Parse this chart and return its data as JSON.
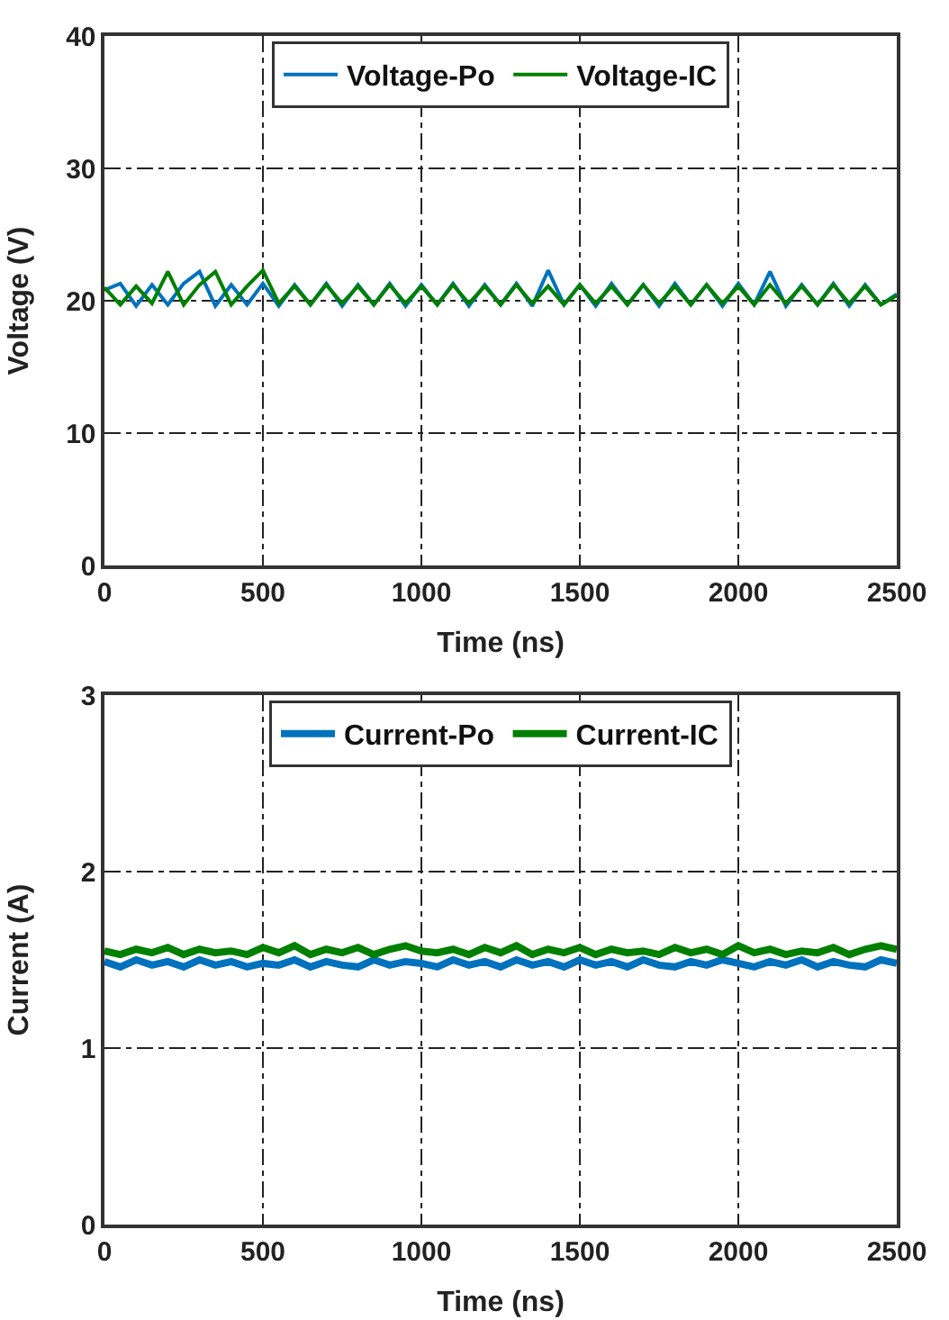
{
  "chart_data": [
    {
      "type": "line",
      "xlabel": "Time (ns)",
      "ylabel": "Voltage (V)",
      "xlim": [
        0,
        2500
      ],
      "xticks": [
        0,
        500,
        1000,
        1500,
        2000,
        2500
      ],
      "ylim": [
        0,
        40
      ],
      "yticks": [
        0,
        10,
        20,
        30,
        40
      ],
      "grid": true,
      "legend": "top",
      "line_style": "solid",
      "x": [
        0,
        50,
        100,
        150,
        200,
        250,
        300,
        350,
        400,
        450,
        500,
        550,
        600,
        650,
        700,
        750,
        800,
        850,
        900,
        950,
        1000,
        1050,
        1100,
        1150,
        1200,
        1250,
        1300,
        1350,
        1400,
        1450,
        1500,
        1550,
        1600,
        1650,
        1700,
        1750,
        1800,
        1850,
        1900,
        1950,
        2000,
        2050,
        2100,
        2150,
        2200,
        2250,
        2300,
        2350,
        2400,
        2450,
        2500
      ],
      "series": [
        {
          "name": "Voltage-Po",
          "color": "#0072bd",
          "values": [
            20.8,
            21.3,
            19.6,
            21.2,
            19.7,
            21.3,
            22.2,
            19.6,
            21.2,
            19.7,
            21.3,
            19.6,
            21.2,
            19.7,
            21.3,
            19.6,
            21.2,
            19.7,
            21.3,
            19.6,
            21.2,
            19.7,
            21.3,
            19.6,
            21.2,
            19.7,
            21.3,
            19.6,
            22.3,
            19.7,
            21.2,
            19.6,
            21.3,
            19.7,
            21.2,
            19.6,
            21.3,
            19.7,
            21.2,
            19.6,
            21.3,
            19.7,
            22.2,
            19.6,
            21.2,
            19.7,
            21.3,
            19.6,
            21.2,
            19.7,
            20.5
          ]
        },
        {
          "name": "Voltage-IC",
          "color": "#008000",
          "values": [
            21.0,
            19.7,
            21.1,
            19.8,
            22.2,
            19.7,
            21.2,
            22.2,
            19.7,
            21.1,
            22.3,
            19.8,
            21.1,
            19.7,
            21.2,
            19.8,
            21.1,
            19.7,
            21.2,
            19.8,
            21.1,
            19.7,
            21.2,
            19.8,
            21.1,
            19.7,
            21.2,
            19.8,
            21.1,
            19.7,
            21.2,
            19.8,
            21.1,
            19.7,
            21.2,
            19.8,
            21.1,
            19.7,
            21.2,
            19.8,
            21.1,
            19.7,
            21.2,
            19.8,
            21.1,
            19.7,
            21.2,
            19.8,
            21.1,
            19.7,
            20.4
          ]
        }
      ]
    },
    {
      "type": "line",
      "xlabel": "Time (ns)",
      "ylabel": "Current (A)",
      "xlim": [
        0,
        2500
      ],
      "xticks": [
        0,
        500,
        1000,
        1500,
        2000,
        2500
      ],
      "ylim": [
        0,
        3
      ],
      "yticks": [
        0,
        1,
        2,
        3
      ],
      "grid": true,
      "legend": "top",
      "line_style": "solid",
      "x": [
        0,
        50,
        100,
        150,
        200,
        250,
        300,
        350,
        400,
        450,
        500,
        550,
        600,
        650,
        700,
        750,
        800,
        850,
        900,
        950,
        1000,
        1050,
        1100,
        1150,
        1200,
        1250,
        1300,
        1350,
        1400,
        1450,
        1500,
        1550,
        1600,
        1650,
        1700,
        1750,
        1800,
        1850,
        1900,
        1950,
        2000,
        2050,
        2100,
        2150,
        2200,
        2250,
        2300,
        2350,
        2400,
        2450,
        2500
      ],
      "series": [
        {
          "name": "Current-Po",
          "color": "#0072bd",
          "values": [
            1.49,
            1.46,
            1.5,
            1.47,
            1.49,
            1.46,
            1.5,
            1.47,
            1.49,
            1.46,
            1.48,
            1.47,
            1.5,
            1.46,
            1.49,
            1.47,
            1.46,
            1.5,
            1.47,
            1.49,
            1.48,
            1.46,
            1.5,
            1.47,
            1.49,
            1.46,
            1.5,
            1.47,
            1.49,
            1.46,
            1.5,
            1.47,
            1.49,
            1.46,
            1.5,
            1.47,
            1.46,
            1.49,
            1.47,
            1.5,
            1.48,
            1.46,
            1.49,
            1.47,
            1.5,
            1.46,
            1.49,
            1.47,
            1.46,
            1.5,
            1.48
          ]
        },
        {
          "name": "Current-IC",
          "color": "#008000",
          "values": [
            1.55,
            1.53,
            1.56,
            1.54,
            1.57,
            1.53,
            1.56,
            1.54,
            1.55,
            1.53,
            1.57,
            1.54,
            1.58,
            1.53,
            1.56,
            1.54,
            1.57,
            1.53,
            1.56,
            1.58,
            1.55,
            1.54,
            1.56,
            1.53,
            1.57,
            1.54,
            1.58,
            1.53,
            1.56,
            1.54,
            1.57,
            1.53,
            1.56,
            1.54,
            1.55,
            1.53,
            1.57,
            1.54,
            1.56,
            1.53,
            1.58,
            1.54,
            1.56,
            1.53,
            1.55,
            1.54,
            1.57,
            1.53,
            1.56,
            1.58,
            1.56
          ]
        }
      ]
    }
  ]
}
